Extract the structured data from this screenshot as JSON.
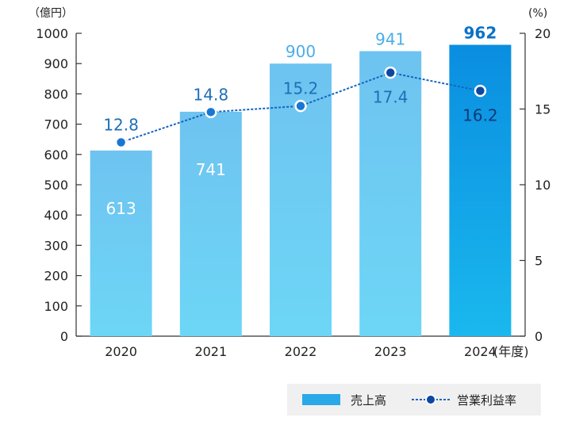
{
  "chart_data": {
    "type": "bar",
    "categories": [
      "2020",
      "2021",
      "2022",
      "2023",
      "2024"
    ],
    "series": [
      {
        "name": "売上高",
        "type": "bar",
        "axis": "left",
        "values": [
          613,
          741,
          900,
          941,
          962
        ]
      },
      {
        "name": "営業利益率",
        "type": "line",
        "axis": "right",
        "values": [
          12.8,
          14.8,
          15.2,
          17.4,
          16.2
        ]
      }
    ],
    "left_axis": {
      "unit": "（億円）",
      "ylim": [
        0,
        1000
      ],
      "ticks": [
        "0",
        "100",
        "200",
        "300",
        "400",
        "500",
        "600",
        "700",
        "800",
        "900",
        "1000"
      ]
    },
    "right_axis": {
      "unit": "(%)",
      "ylim": [
        0,
        20
      ],
      "ticks": [
        "0",
        "5",
        "10",
        "15",
        "20"
      ]
    },
    "x_unit": "(年度)",
    "legend_position": "bottom-right",
    "grid": false,
    "colors": {
      "bar_light_top": "#6ec3f0",
      "bar_light_bottom": "#6dd6f6",
      "bar_highlight_top": "#0a8ee0",
      "bar_highlight_bottom": "#1ab8ee",
      "bar_label_light": "#4aaee8",
      "bar_label_highlight": "#0a72c6",
      "line": "#1565c0",
      "marker_fill": "#1976d2",
      "marker_fill_dark": "#0d47a1",
      "rate_label": "#1e6fb8",
      "axis": "#333333",
      "legend_bg": "#f0f0f0",
      "legend_bar": "#29a9e8"
    }
  }
}
